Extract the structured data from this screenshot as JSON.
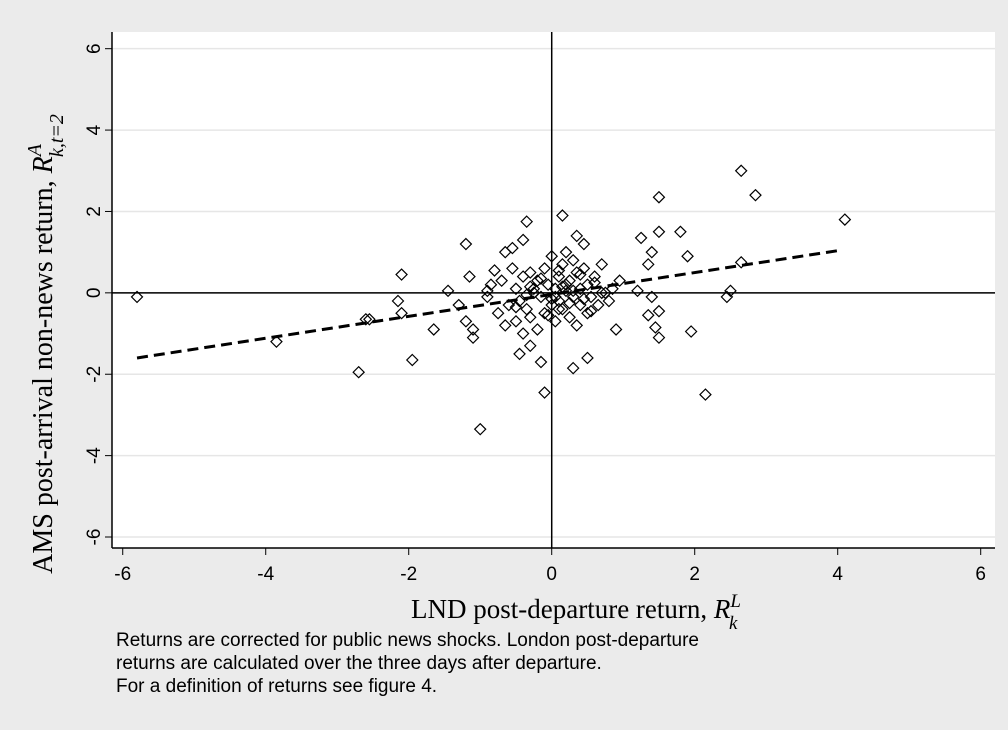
{
  "chart_data": {
    "type": "scatter",
    "x_label": "LND post-departure return, ",
    "x_label_math": {
      "base": "R",
      "sup": "L",
      "sub": "k"
    },
    "y_label": "AMS post-arrival non-news return, ",
    "y_label_math": {
      "base": "R",
      "sup": "A",
      "sub": "k,t=2"
    },
    "note": [
      "Returns are corrected for public news shocks. London post-departure",
      "returns are calculated over the three days after departure.",
      "For a definition of returns see figure 4."
    ],
    "xlim": [
      -6.15,
      6.2
    ],
    "ylim": [
      -6.27,
      6.41
    ],
    "xticks": [
      -6,
      -4,
      -2,
      0,
      2,
      4,
      6
    ],
    "yticks": [
      -6,
      -4,
      -2,
      0,
      2,
      4,
      6
    ],
    "grid": true,
    "reference_lines": {
      "x": 0,
      "y": 0
    },
    "fit_line": {
      "x": [
        -5.8,
        4.05
      ],
      "y": [
        -1.6,
        1.05
      ],
      "color": "#000000"
    },
    "series": [
      {
        "color": "#000000",
        "x": [
          -5.8,
          -3.85,
          -2.7,
          -2.6,
          -2.55,
          -2.15,
          -2.1,
          -2.1,
          -1.95,
          -1.65,
          -1.45,
          -1.3,
          -1.2,
          -1.15,
          -1.2,
          -1.1,
          -1.1,
          -1.0,
          -0.9,
          -0.8,
          -0.65,
          -0.55,
          -0.4,
          -0.35,
          -0.45,
          -0.3,
          -0.15,
          -0.1,
          0.15,
          0.3,
          0.35,
          0.45,
          0.5,
          0.9,
          1.25,
          1.5,
          1.5,
          1.4,
          1.35,
          1.5,
          1.45,
          1.5,
          1.4,
          1.8,
          1.9,
          1.95,
          2.15,
          2.45,
          2.5,
          2.65,
          2.65,
          2.85,
          4.1,
          1.2,
          1.35,
          -0.9,
          -0.85,
          -0.75,
          -0.7,
          -0.6,
          -0.55,
          -0.5,
          -0.5,
          -0.45,
          -0.4,
          -0.4,
          -0.35,
          -0.3,
          -0.3,
          -0.25,
          -0.2,
          -0.2,
          -0.15,
          -0.1,
          -0.1,
          -0.05,
          0,
          0,
          0.05,
          0.05,
          0.1,
          0.1,
          0.15,
          0.15,
          0.2,
          0.2,
          0.25,
          0.25,
          0.3,
          0.3,
          0.35,
          0.35,
          0.4,
          0.4,
          0.45,
          0.5,
          0.5,
          0.55,
          0.6,
          0.65,
          0.7,
          0.75,
          0.8,
          0.85,
          0.95,
          -0.65,
          -0.35,
          -0.25,
          0.05,
          0.15,
          0.3,
          0.45,
          0.6,
          -0.5,
          -0.15,
          0.1,
          0.25,
          0.4,
          0.55,
          0.7,
          -0.3,
          0,
          0.2,
          -0.05,
          0.1
        ],
        "y": [
          -0.1,
          -1.2,
          -1.95,
          -0.65,
          -0.65,
          -0.2,
          0.45,
          -0.5,
          -1.65,
          -0.9,
          0.05,
          -0.3,
          1.2,
          0.4,
          -0.7,
          -0.9,
          -1.1,
          -3.35,
          0.05,
          0.55,
          1.0,
          1.1,
          1.3,
          1.75,
          -1.5,
          -1.3,
          -1.7,
          -2.45,
          1.9,
          -1.85,
          1.4,
          1.2,
          -1.6,
          -0.9,
          1.35,
          2.35,
          1.5,
          1.0,
          0.7,
          -0.45,
          -0.85,
          -1.1,
          -0.1,
          1.5,
          0.9,
          -0.95,
          -2.5,
          -0.1,
          0.05,
          3.0,
          0.75,
          2.4,
          1.8,
          0.05,
          -0.55,
          -0.1,
          0.2,
          -0.5,
          0.3,
          -0.3,
          0.6,
          -0.7,
          0.1,
          -0.2,
          0.4,
          -1.0,
          -0.4,
          0.5,
          -0.6,
          0.1,
          -0.9,
          0.3,
          -0.1,
          0.6,
          -0.5,
          0.2,
          -0.3,
          0.9,
          0.1,
          -0.7,
          0.4,
          -0.2,
          0.7,
          -0.4,
          0.2,
          1.0,
          -0.6,
          0.3,
          0.8,
          -0.1,
          -0.8,
          0.5,
          0.1,
          -0.3,
          0.6,
          -0.5,
          0.2,
          -0.1,
          0.4,
          -0.3,
          0.7,
          0,
          -0.2,
          0.1,
          0.3,
          -0.8,
          -0.05,
          0.0,
          -0.1,
          0.15,
          0.05,
          -0.15,
          0.25,
          -0.35,
          0.35,
          -0.4,
          -0.25,
          0.45,
          -0.45,
          0.0,
          0.15,
          -0.15,
          0.05,
          -0.55,
          0.55
        ]
      }
    ]
  }
}
